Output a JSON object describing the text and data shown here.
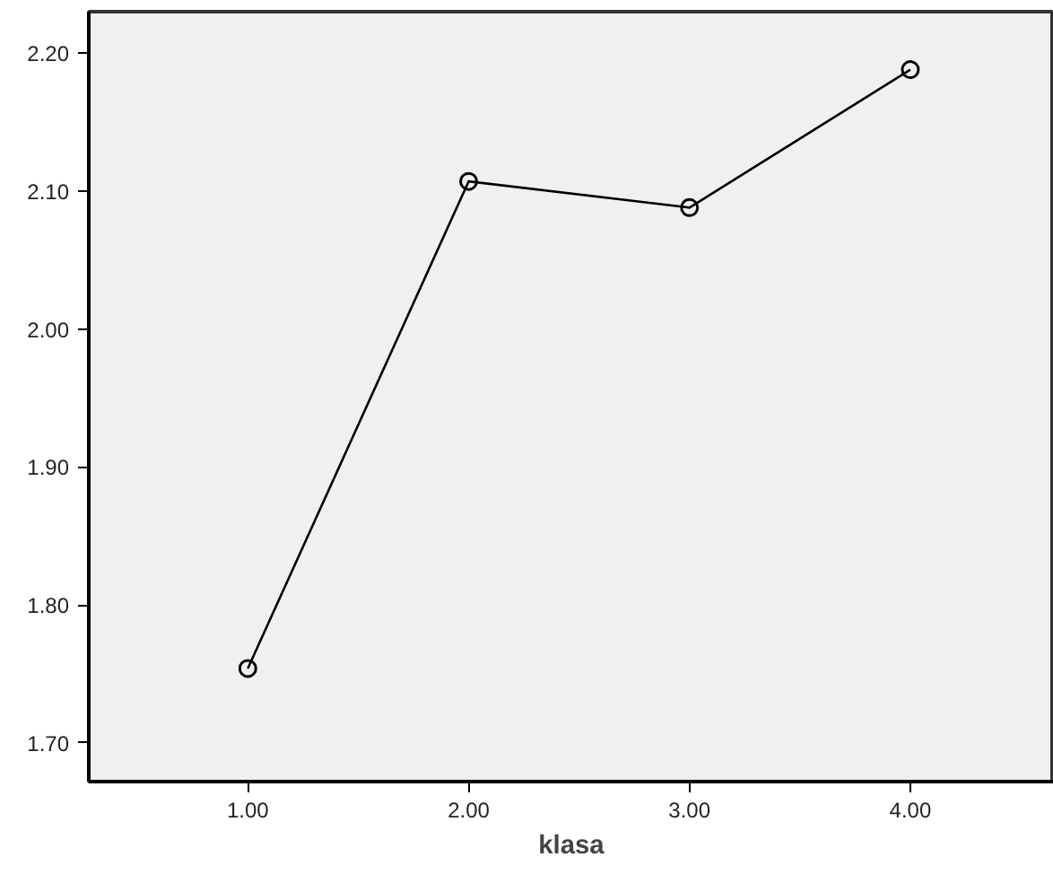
{
  "chart_data": {
    "type": "line",
    "xlabel": "klasa",
    "categories": [
      "1.00",
      "2.00",
      "3.00",
      "4.00"
    ],
    "series": [
      {
        "color": "#000000",
        "values": [
          1.754,
          2.107,
          2.088,
          2.188
        ]
      }
    ],
    "ylim": [
      1.672,
      2.23
    ],
    "yticks": [
      {
        "value": 1.7,
        "label": "1.70"
      },
      {
        "value": 1.8,
        "label": "1.80"
      },
      {
        "value": 1.9,
        "label": "1.90"
      },
      {
        "value": 2.0,
        "label": "2.00"
      },
      {
        "value": 2.1,
        "label": "2.10"
      },
      {
        "value": 2.2,
        "label": "2.20"
      }
    ],
    "grid": false,
    "marker": "circle",
    "line_style": "solid"
  }
}
